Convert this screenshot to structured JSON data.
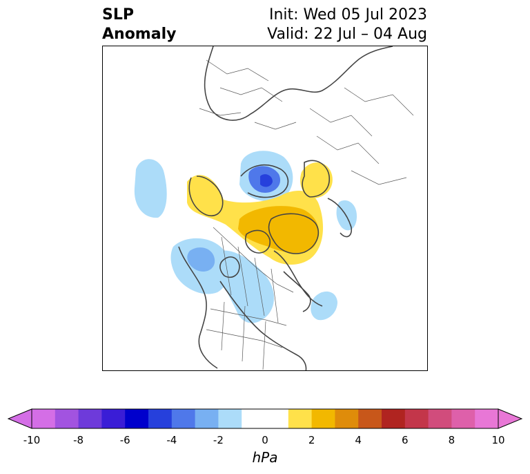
{
  "title": {
    "left": [
      "SLP",
      "Anomaly"
    ],
    "right": [
      "Init: Wed 05 Jul 2023",
      "Valid: 22 Jul – 04 Aug"
    ]
  },
  "colorbar": {
    "unit": "hPa",
    "tick_labels": [
      "-10",
      "-8",
      "-6",
      "-4",
      "-2",
      "0",
      "2",
      "4",
      "6",
      "8",
      "10"
    ],
    "bins": [
      {
        "from": -10,
        "to": -9,
        "color": "#d46ee6"
      },
      {
        "from": -9,
        "to": -8,
        "color": "#a253e0"
      },
      {
        "from": -8,
        "to": -7,
        "color": "#6e3ada"
      },
      {
        "from": -7,
        "to": -6,
        "color": "#3a1dd6"
      },
      {
        "from": -6,
        "to": -5,
        "color": "#0000cc"
      },
      {
        "from": -5,
        "to": -4,
        "color": "#2640dc"
      },
      {
        "from": -4,
        "to": -3,
        "color": "#4f78ea"
      },
      {
        "from": -3,
        "to": -2,
        "color": "#78b0f2"
      },
      {
        "from": -2,
        "to": -1,
        "color": "#acdcf9"
      },
      {
        "from": -1,
        "to": 1,
        "color": "#ffffff"
      },
      {
        "from": 1,
        "to": 2,
        "color": "#ffe14a"
      },
      {
        "from": 2,
        "to": 3,
        "color": "#f2b800"
      },
      {
        "from": 3,
        "to": 4,
        "color": "#df8c0a"
      },
      {
        "from": 4,
        "to": 5,
        "color": "#c8571a"
      },
      {
        "from": 5,
        "to": 6,
        "color": "#b02420"
      },
      {
        "from": 6,
        "to": 7,
        "color": "#c3364a"
      },
      {
        "from": 7,
        "to": 8,
        "color": "#d14c7c"
      },
      {
        "from": 8,
        "to": 9,
        "color": "#de60aa"
      },
      {
        "from": 9,
        "to": 10,
        "color": "#e877d6"
      }
    ],
    "extend_low_color": "#d46ee6",
    "extend_high_color": "#e877d6"
  },
  "map": {
    "projection": "polar stereographic (Northern Hemisphere)",
    "colors": {
      "coast": "#444444",
      "border": "#555555"
    },
    "anomaly_regions": [
      {
        "name": "low-north-atlantic",
        "level": -2
      },
      {
        "name": "low-arctic-siberia-core",
        "level": -4
      },
      {
        "name": "high-central-arctic",
        "level": 1
      },
      {
        "name": "high-greenland-core",
        "level": 2
      },
      {
        "name": "high-europe",
        "level": 1
      },
      {
        "name": "low-alaska",
        "level": -2
      },
      {
        "name": "low-north-america",
        "level": -1
      },
      {
        "name": "low-kamchatka",
        "level": -1
      },
      {
        "name": "low-north-pacific",
        "level": -1
      }
    ]
  }
}
